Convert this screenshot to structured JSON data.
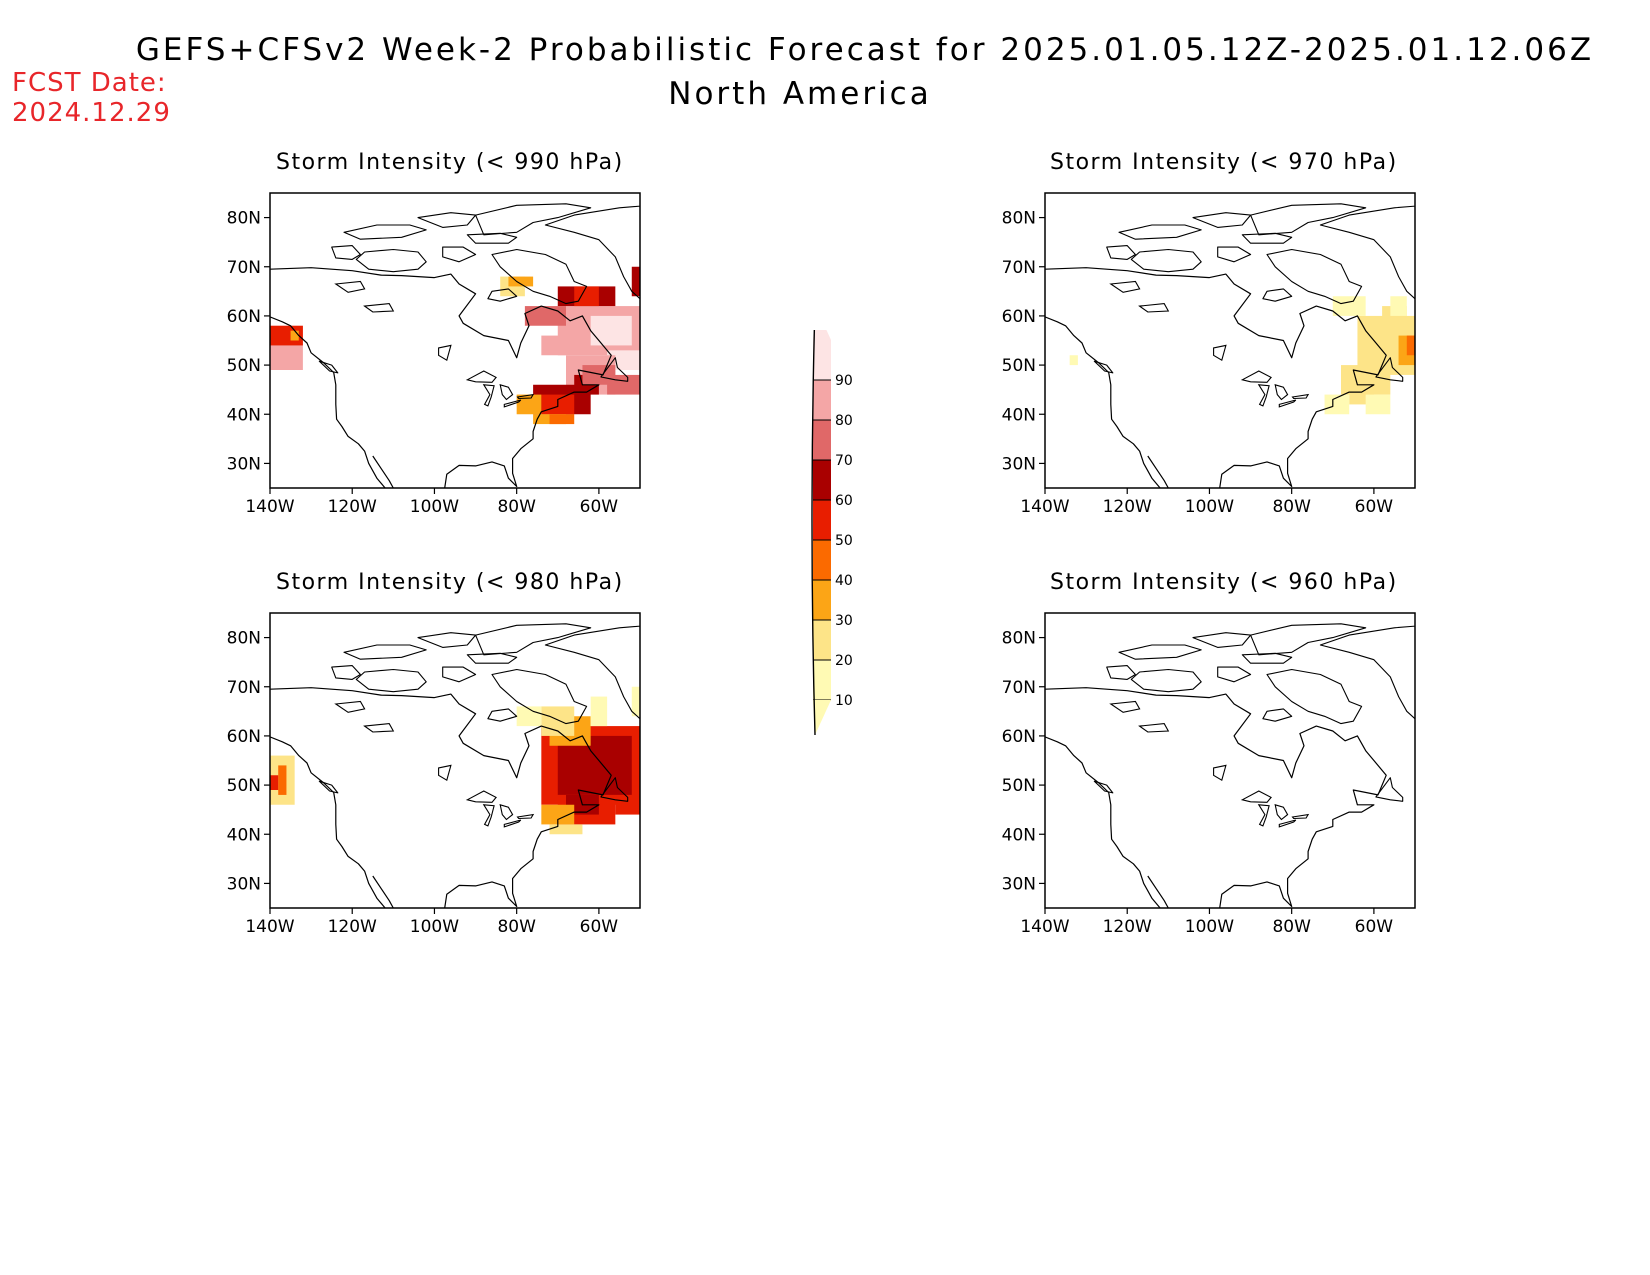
{
  "header": {
    "title": "GEFS+CFSv2 Week-2 Probabilistic Forecast for 2025.01.05.12Z-2025.01.12.06Z",
    "subtitle": "North America",
    "fcst_label": "FCST Date:",
    "fcst_value": "2024.12.29"
  },
  "axes": {
    "lat_ticks": [
      "80N",
      "70N",
      "60N",
      "50N",
      "40N",
      "30N"
    ],
    "lat_values": [
      80,
      70,
      60,
      50,
      40,
      30
    ],
    "lon_ticks": [
      "140W",
      "120W",
      "100W",
      "80W",
      "60W"
    ],
    "lon_values": [
      -140,
      -120,
      -100,
      -80,
      -60
    ],
    "lon_range": [
      -140,
      -50
    ],
    "lat_range": [
      25,
      85
    ]
  },
  "colorbar": {
    "levels": [
      "10",
      "20",
      "30",
      "40",
      "50",
      "60",
      "70",
      "80",
      "90"
    ],
    "colors": [
      "#fffab4",
      "#fde488",
      "#fca516",
      "#fb6a00",
      "#e81e00",
      "#a90000",
      "#e06868",
      "#f4a6a6",
      "#fde4e4"
    ]
  },
  "panels": [
    {
      "id": "p990",
      "title": "Storm Intensity (< 990 hPa)"
    },
    {
      "id": "p970",
      "title": "Storm Intensity (< 970 hPa)"
    },
    {
      "id": "p980",
      "title": "Storm Intensity (< 980 hPa)"
    },
    {
      "id": "p960",
      "title": "Storm Intensity (< 960 hPa)"
    }
  ]
}
